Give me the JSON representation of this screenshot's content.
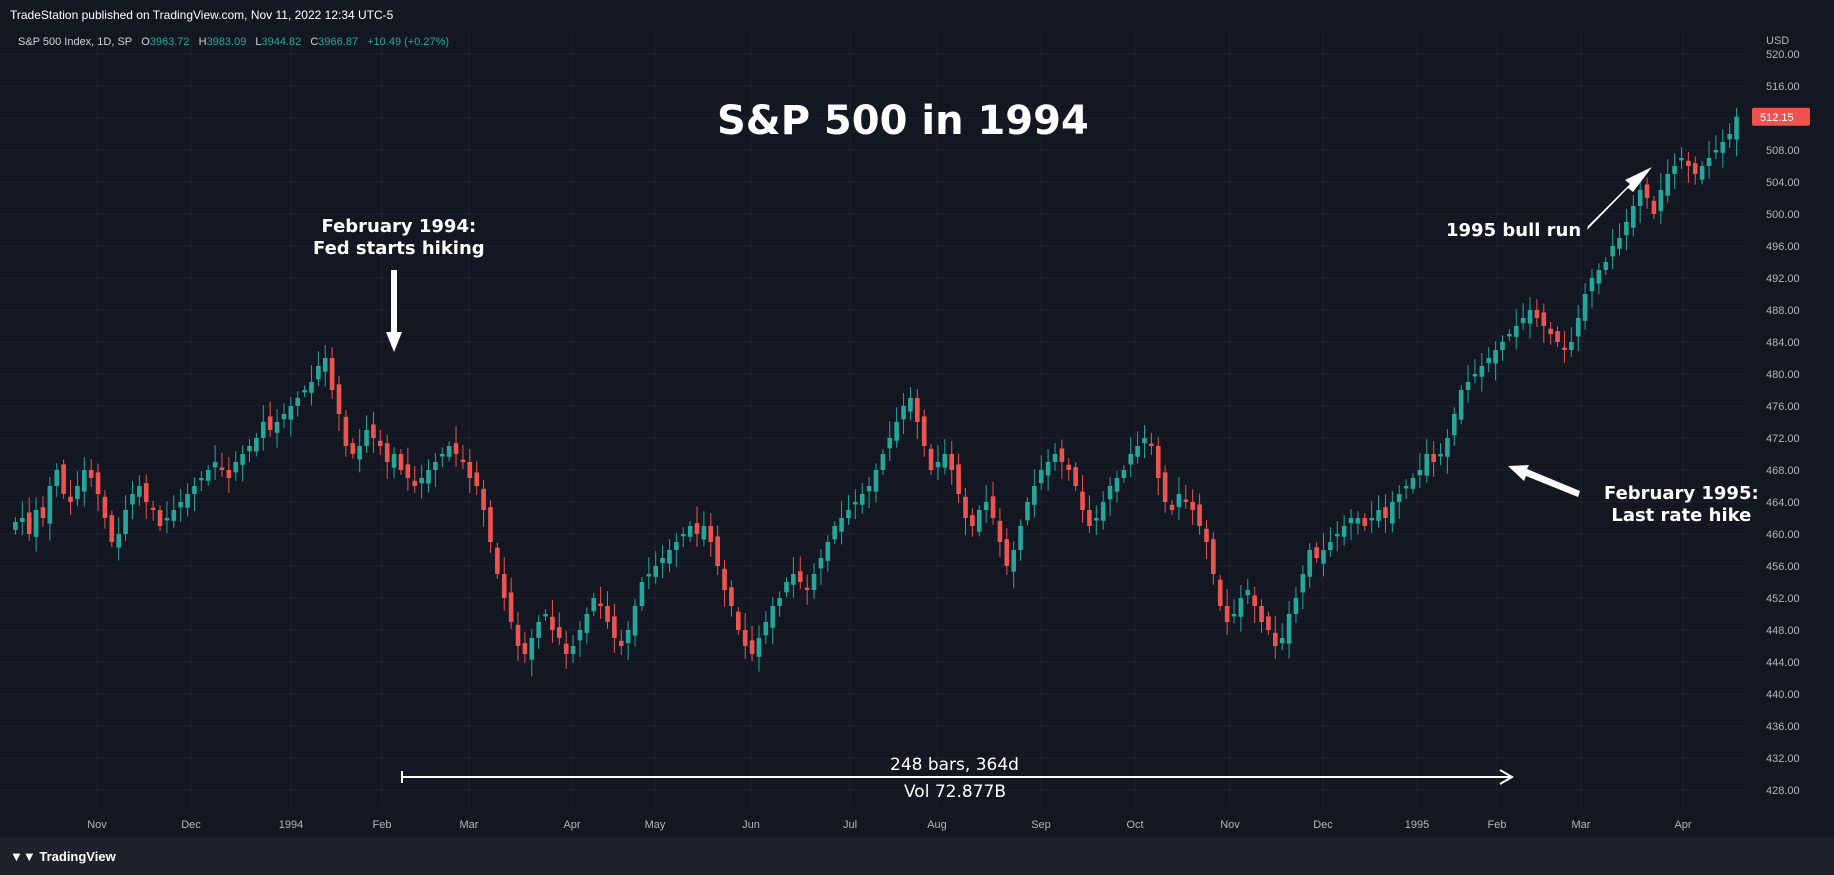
{
  "header": {
    "published_by": "TradeStation published on TradingView.com, Nov 11, 2022 12:34 UTC-5"
  },
  "legend_line": {
    "symbol": "S&P 500 Index, 1D, SP",
    "open_label": "O",
    "open": "3963.72",
    "high_label": "H",
    "high": "3983.09",
    "low_label": "L",
    "low": "3944.82",
    "close_label": "C",
    "close": "3966.87",
    "change": "+10.49 (+0.27%)"
  },
  "annotations": {
    "title": "S&P 500 in 1994",
    "fed_hike_line1": "February 1994:",
    "fed_hike_line2": "Fed starts hiking",
    "last_hike_line1": "February 1995:",
    "last_hike_line2": "Last rate hike",
    "bull_run": "1995 bull run",
    "measure_bars": "248 bars, 364d",
    "measure_vol": "Vol 72.877B"
  },
  "footer": {
    "logo_text": "TradingView"
  },
  "colors": {
    "background": "#131722",
    "up": "#26a69a",
    "down": "#ef5350",
    "grid": "#1e2230",
    "price_tag": "#ef5350"
  },
  "chart_data": {
    "type": "candlestick",
    "title": "S&P 500 in 1994",
    "currency": "USD",
    "last_price": "512.15",
    "ylim": [
      426,
      523
    ],
    "y_ticks": [
      "428.00",
      "432.00",
      "436.00",
      "440.00",
      "444.00",
      "448.00",
      "452.00",
      "456.00",
      "460.00",
      "464.00",
      "468.00",
      "472.00",
      "476.00",
      "480.00",
      "484.00",
      "488.00",
      "492.00",
      "496.00",
      "500.00",
      "504.00",
      "508.00",
      "512.00",
      "516.00",
      "520.00"
    ],
    "x_ticks": [
      "Nov",
      "Dec",
      "1994",
      "Feb",
      "Mar",
      "Apr",
      "May",
      "Jun",
      "Jul",
      "Aug",
      "Sep",
      "Oct",
      "Nov",
      "Dec",
      "1995",
      "Feb",
      "Mar",
      "Apr"
    ],
    "grid": true,
    "closes": [
      461.5,
      462,
      460,
      463,
      462,
      466,
      468,
      465,
      464,
      466,
      468,
      467,
      465,
      462,
      459,
      460,
      463,
      465,
      466,
      464,
      463,
      461,
      462,
      463,
      464,
      465,
      466,
      467,
      468,
      469,
      468,
      467,
      469,
      470,
      471,
      472,
      474,
      473,
      474,
      475,
      476,
      477,
      478,
      479,
      481,
      482,
      478,
      475,
      471,
      470,
      471,
      473,
      472,
      471,
      469,
      470,
      468,
      467,
      466,
      467,
      468,
      469,
      470,
      471,
      470,
      469,
      467,
      466,
      463,
      459,
      455,
      452,
      449,
      446,
      445,
      447,
      449,
      450,
      448,
      447,
      445,
      446,
      448,
      450,
      452,
      451,
      449,
      447,
      446,
      448,
      451,
      454,
      455,
      456,
      457,
      458,
      459,
      460,
      461,
      460,
      461,
      459,
      456,
      453,
      451,
      448,
      446,
      445,
      447,
      449,
      451,
      452,
      454,
      455,
      454,
      453,
      455,
      457,
      459,
      461,
      462,
      463,
      464,
      465,
      466,
      468,
      470,
      472,
      474,
      476,
      477,
      474,
      471,
      468,
      469,
      470,
      468,
      465,
      462,
      461,
      463,
      464,
      462,
      459,
      456,
      458,
      461,
      464,
      466,
      468,
      469,
      470,
      469,
      468,
      466,
      463,
      461,
      462,
      464,
      466,
      467,
      468,
      470,
      471,
      472,
      471,
      467,
      464,
      463,
      465,
      464,
      463,
      461,
      459,
      455,
      451,
      449,
      450,
      452,
      453,
      451,
      449,
      448,
      446,
      447,
      450,
      452,
      455,
      458,
      457,
      458,
      459,
      460,
      461,
      462,
      462,
      461,
      462,
      463,
      462,
      464,
      465,
      466,
      467,
      468,
      470,
      469,
      470,
      472,
      475,
      478,
      479,
      480,
      481,
      482,
      483,
      484,
      485,
      486,
      487,
      488,
      487,
      486,
      485,
      484,
      483,
      484,
      487,
      490,
      492,
      493,
      494,
      496,
      497,
      499,
      501,
      503,
      502,
      500,
      503,
      505,
      506,
      507,
      506,
      505,
      506,
      507,
      508,
      509,
      510,
      512.15
    ],
    "x_end_label": "Apr",
    "measure": {
      "from": "Feb 1994",
      "to": "Feb 1995",
      "bars": 248,
      "days": 364,
      "volume": "72.877B"
    }
  }
}
